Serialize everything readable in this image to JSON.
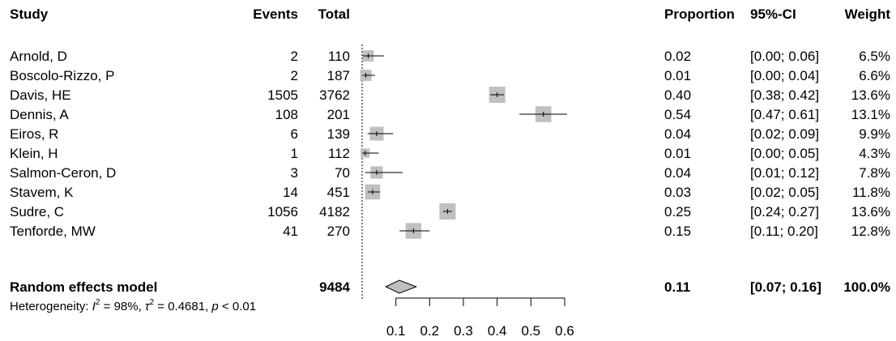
{
  "chart_data": {
    "type": "forest",
    "headers": {
      "study": "Study",
      "events": "Events",
      "total": "Total",
      "proportion": "Proportion",
      "ci": "95%-CI",
      "weight": "Weight"
    },
    "studies": [
      {
        "name": "Arnold, D",
        "events": "2",
        "total": "110",
        "proportion": "0.02",
        "ci": "[0.00; 0.06]",
        "weight": "6.5%",
        "est": 0.018,
        "lower": 0.002,
        "upper": 0.064,
        "w": 6.5
      },
      {
        "name": "Boscolo-Rizzo, P",
        "events": "2",
        "total": "187",
        "proportion": "0.01",
        "ci": "[0.00; 0.04]",
        "weight": "6.6%",
        "est": 0.011,
        "lower": 0.001,
        "upper": 0.038,
        "w": 6.6
      },
      {
        "name": "Davis, HE",
        "events": "1505",
        "total": "3762",
        "proportion": "0.40",
        "ci": "[0.38; 0.42]",
        "weight": "13.6%",
        "est": 0.4,
        "lower": 0.38,
        "upper": 0.42,
        "w": 13.6
      },
      {
        "name": "Dennis, A",
        "events": "108",
        "total": "201",
        "proportion": "0.54",
        "ci": "[0.47; 0.61]",
        "weight": "13.1%",
        "est": 0.537,
        "lower": 0.466,
        "upper": 0.607,
        "w": 13.1
      },
      {
        "name": "Eiros, R",
        "events": "6",
        "total": "139",
        "proportion": "0.04",
        "ci": "[0.02; 0.09]",
        "weight": "9.9%",
        "est": 0.043,
        "lower": 0.016,
        "upper": 0.092,
        "w": 9.9
      },
      {
        "name": "Klein, H",
        "events": "1",
        "total": "112",
        "proportion": "0.01",
        "ci": "[0.00; 0.05]",
        "weight": "4.3%",
        "est": 0.009,
        "lower": 0.0,
        "upper": 0.049,
        "w": 4.3
      },
      {
        "name": "Salmon-Ceron, D",
        "events": "3",
        "total": "70",
        "proportion": "0.04",
        "ci": "[0.01; 0.12]",
        "weight": "7.8%",
        "est": 0.043,
        "lower": 0.009,
        "upper": 0.12,
        "w": 7.8
      },
      {
        "name": "Stavem, K",
        "events": "14",
        "total": "451",
        "proportion": "0.03",
        "ci": "[0.02; 0.05]",
        "weight": "11.8%",
        "est": 0.031,
        "lower": 0.017,
        "upper": 0.052,
        "w": 11.8
      },
      {
        "name": "Sudre, C",
        "events": "1056",
        "total": "4182",
        "proportion": "0.25",
        "ci": "[0.24; 0.27]",
        "weight": "13.6%",
        "est": 0.253,
        "lower": 0.24,
        "upper": 0.266,
        "w": 13.6
      },
      {
        "name": "Tenforde, MW",
        "events": "41",
        "total": "270",
        "proportion": "0.15",
        "ci": "[0.11; 0.20]",
        "weight": "12.8%",
        "est": 0.152,
        "lower": 0.111,
        "upper": 0.2,
        "w": 12.8
      }
    ],
    "summary": {
      "name": "Random effects model",
      "total": "9484",
      "proportion": "0.11",
      "ci": "[0.07; 0.16]",
      "weight": "100.0%",
      "est": 0.11,
      "lower": 0.07,
      "upper": 0.16
    },
    "heterogeneity": {
      "label": "Heterogeneity: ",
      "i2_symbol": "I",
      "i2_sup": "2",
      "i2_value": " = 98%, ",
      "tau_symbol": "τ",
      "tau_sup": "2",
      "tau_value": " = 0.4681, ",
      "p_symbol": "p",
      "p_value": " < 0.01"
    },
    "reference_line": 0.0,
    "x_ticks": [
      "0.1",
      "0.2",
      "0.3",
      "0.4",
      "0.5",
      "0.6"
    ],
    "xlim": [
      0.0,
      0.6
    ],
    "colors": {
      "square": "#c0c0c0",
      "diamond": "#c0c0c0",
      "line": "#000000"
    }
  }
}
